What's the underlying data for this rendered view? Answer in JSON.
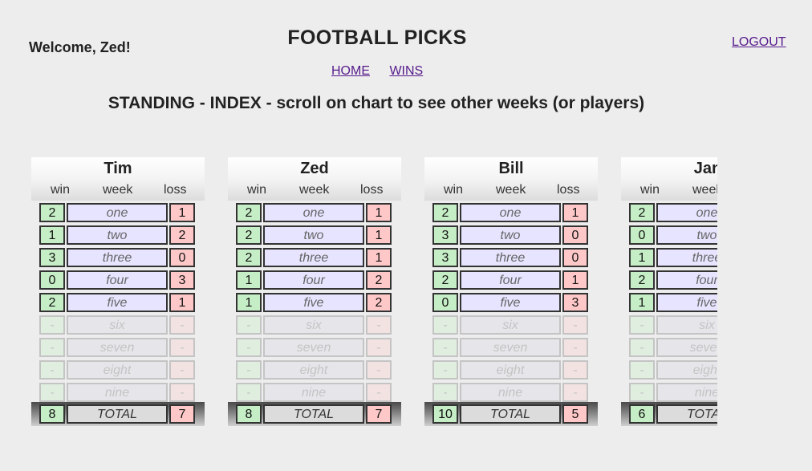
{
  "header": {
    "welcome": "Welcome, Zed!",
    "title": "FOOTBALL PICKS",
    "logout": "LOGOUT",
    "nav": [
      {
        "label": "HOME"
      },
      {
        "label": "WINS"
      }
    ],
    "standing": "STANDING - INDEX - scroll on chart to see other weeks (or players)"
  },
  "labels": {
    "win": "win",
    "week": "week",
    "loss": "loss",
    "total": "TOTAL"
  },
  "weeks": [
    "one",
    "two",
    "three",
    "four",
    "five",
    "six",
    "seven",
    "eight",
    "nine"
  ],
  "placeholder": "-",
  "players": [
    {
      "name": "Tim",
      "wins": [
        2,
        1,
        3,
        0,
        2
      ],
      "losses": [
        1,
        2,
        0,
        3,
        1
      ],
      "total_win": 8,
      "total_loss": 7
    },
    {
      "name": "Zed",
      "wins": [
        2,
        2,
        2,
        1,
        1
      ],
      "losses": [
        1,
        1,
        1,
        2,
        2
      ],
      "total_win": 8,
      "total_loss": 7
    },
    {
      "name": "Bill",
      "wins": [
        2,
        3,
        3,
        2,
        0
      ],
      "losses": [
        1,
        0,
        0,
        1,
        3
      ],
      "total_win": 10,
      "total_loss": 5
    },
    {
      "name": "Jan",
      "wins": [
        2,
        0,
        1,
        2,
        1
      ],
      "losses": [],
      "total_win": 6,
      "total_loss": ""
    }
  ],
  "colors": {
    "win": "#c6eec6",
    "week": "#e6e4ff",
    "loss": "#ffc8c8",
    "link": "#551a8b"
  }
}
